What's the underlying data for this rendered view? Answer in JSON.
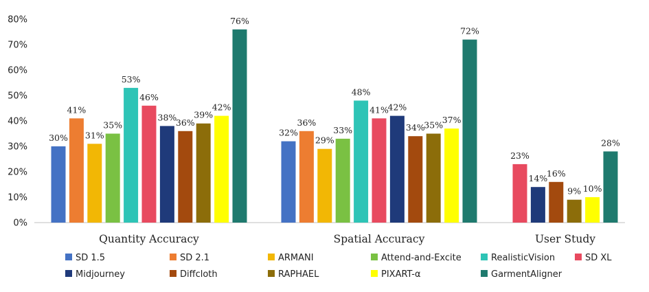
{
  "chart_data": {
    "type": "bar",
    "title": "",
    "xlabel": "",
    "ylabel": "",
    "ylim": [
      0,
      80
    ],
    "yticks": [
      "0%",
      "10%",
      "20%",
      "30%",
      "40%",
      "50%",
      "60%",
      "70%",
      "80%"
    ],
    "grid": false,
    "legend_position": "bottom",
    "categories": [
      "Quantity Accuracy",
      "Spatial Accuracy",
      "User Study"
    ],
    "series": [
      {
        "name": "SD 1.5",
        "color": "#4472C4",
        "values": [
          30,
          32,
          null
        ],
        "labels": [
          "30%",
          "32%",
          ""
        ]
      },
      {
        "name": "SD 2.1",
        "color": "#ED7D31",
        "values": [
          41,
          36,
          null
        ],
        "labels": [
          "41%",
          "36%",
          ""
        ]
      },
      {
        "name": "ARMANI",
        "color": "#F2B705",
        "values": [
          31,
          29,
          null
        ],
        "labels": [
          "31%",
          "29%",
          ""
        ]
      },
      {
        "name": "Attend-and-Excite",
        "color": "#7AC143",
        "values": [
          35,
          33,
          null
        ],
        "labels": [
          "35%",
          "33%",
          ""
        ]
      },
      {
        "name": "RealisticVision",
        "color": "#2EC4B6",
        "values": [
          53,
          48,
          null
        ],
        "labels": [
          "53%",
          "48%",
          ""
        ]
      },
      {
        "name": "SD XL",
        "color": "#E84A5F",
        "values": [
          46,
          41,
          23
        ],
        "labels": [
          "46%",
          "41%",
          "23%"
        ]
      },
      {
        "name": "Midjourney",
        "color": "#1F3A7A",
        "values": [
          38,
          42,
          14
        ],
        "labels": [
          "38%",
          "42%",
          "14%"
        ]
      },
      {
        "name": "Diffcloth",
        "color": "#A34A0E",
        "values": [
          36,
          34,
          16
        ],
        "labels": [
          "36%",
          "34%",
          "16%"
        ]
      },
      {
        "name": "RAPHAEL",
        "color": "#8C6D0A",
        "values": [
          39,
          35,
          9
        ],
        "labels": [
          "39%",
          "35%",
          "9%"
        ]
      },
      {
        "name": "PIXART-α",
        "color": "#FFFF00",
        "values": [
          42,
          37,
          10
        ],
        "labels": [
          "42%",
          "37%",
          "10%"
        ]
      },
      {
        "name": "GarmentAligner",
        "color": "#1F7A6E",
        "values": [
          76,
          72,
          28
        ],
        "labels": [
          "76%",
          "72%",
          "28%"
        ]
      }
    ]
  }
}
